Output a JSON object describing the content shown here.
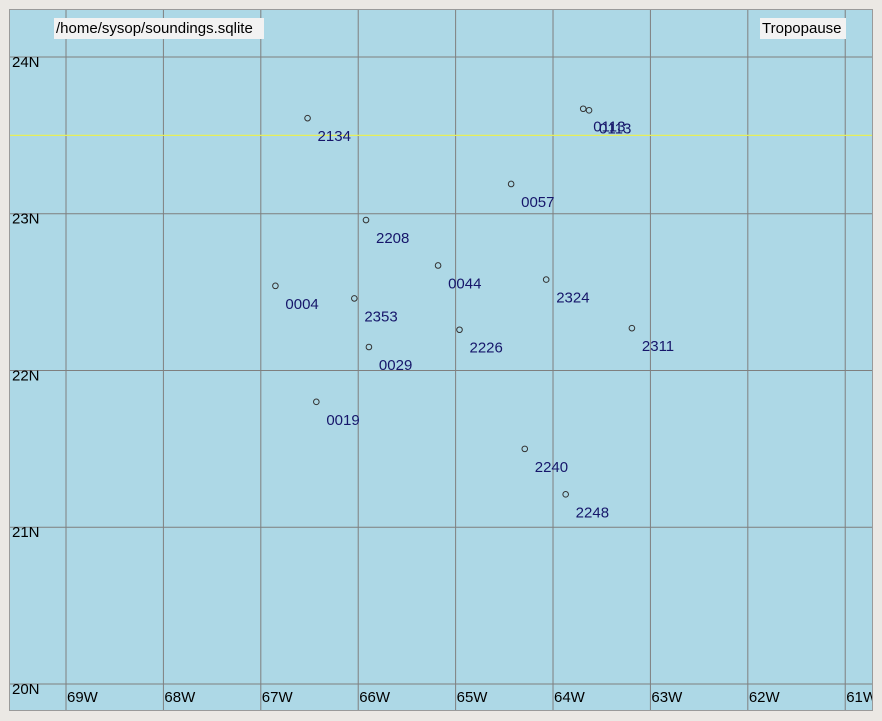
{
  "chart_data": {
    "type": "scatter",
    "title": "/home/sysop/soundings.sqlite",
    "subtitle": "Tropopause",
    "labels": [
      "2134",
      "0113",
      "0113",
      "0057",
      "2208",
      "0044",
      "2324",
      "0004",
      "2353",
      "2226",
      "2311",
      "0029",
      "0019",
      "2240",
      "2248"
    ],
    "x": [
      -66.52,
      -63.69,
      -63.63,
      -64.43,
      -65.92,
      -65.18,
      -64.07,
      -66.85,
      -66.04,
      -64.96,
      -63.19,
      -65.89,
      -66.43,
      -64.29,
      -63.87
    ],
    "y": [
      23.61,
      23.67,
      23.66,
      23.19,
      22.96,
      22.67,
      22.58,
      22.54,
      22.46,
      22.26,
      22.27,
      22.15,
      21.8,
      21.5,
      21.21
    ],
    "xlim": [
      -69.575,
      -60.725
    ],
    "ylim": [
      19.834,
      24.3
    ],
    "xticks": [
      {
        "value": -69,
        "label": "69W"
      },
      {
        "value": -68,
        "label": "68W"
      },
      {
        "value": -67,
        "label": "67W"
      },
      {
        "value": -66,
        "label": "66W"
      },
      {
        "value": -65,
        "label": "65W"
      },
      {
        "value": -64,
        "label": "64W"
      },
      {
        "value": -63,
        "label": "63W"
      },
      {
        "value": -62,
        "label": "62W"
      },
      {
        "value": -61,
        "label": "61W"
      }
    ],
    "yticks": [
      {
        "value": 20,
        "label": "20N"
      },
      {
        "value": 21,
        "label": "21N"
      },
      {
        "value": 22,
        "label": "22N"
      },
      {
        "value": 23,
        "label": "23N"
      },
      {
        "value": 24,
        "label": "24N"
      }
    ],
    "ref_line": {
      "value": 23.5,
      "color": "#e6ee5a"
    },
    "grid": true,
    "color": "#333333",
    "label_color": "#16166a",
    "background": "#add8e6"
  }
}
